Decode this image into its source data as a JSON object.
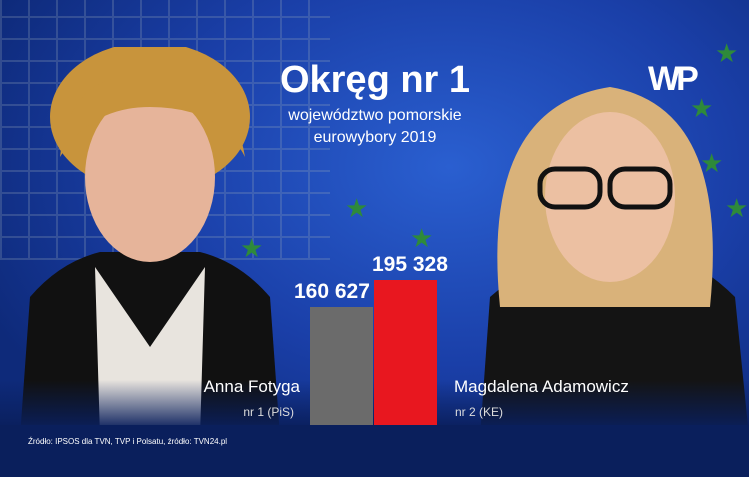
{
  "header": {
    "title": "Okręg nr 1",
    "subtitle1": "województwo pomorskie",
    "subtitle2": "eurowybory 2019",
    "logo": "WP"
  },
  "chart_data": {
    "type": "bar",
    "categories": [
      "Anna Fotyga",
      "Magdalena Adamowicz"
    ],
    "values": [
      160627,
      195328
    ],
    "value_labels": [
      "160 627",
      "195 328"
    ],
    "colors": [
      "#6b6b6b",
      "#e8171f"
    ],
    "ylim": [
      0,
      195328
    ]
  },
  "candidates": [
    {
      "name": "Anna Fotyga",
      "list": "nr 1 (PiS)"
    },
    {
      "name": "Magdalena Adamowicz",
      "list": "nr 2 (KE)"
    }
  ],
  "footer": {
    "source": "Źródło: IPSOS dla TVN, TVP i Polsatu, źródło: TVN24.pl"
  },
  "colors": {
    "background": "#1a3fa8",
    "footer": "#0a1f5c"
  }
}
